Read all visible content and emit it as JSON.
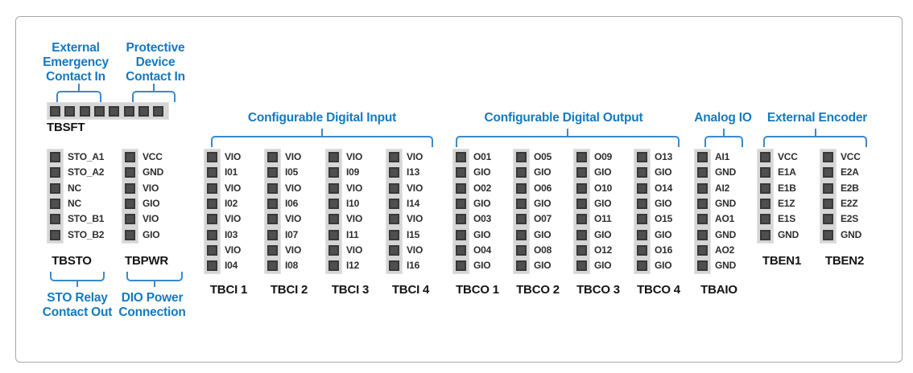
{
  "colors": {
    "accent": "#1579c0",
    "bracket": "#3a89cc",
    "pin_fill": "#4f4f4f",
    "pin_edge": "#383838",
    "strip": "#d6d6d6",
    "label_ink": "#141414",
    "frame_border": "#a8a8a8"
  },
  "safety_group": {
    "strip_label": "TBSFT",
    "pin_count": 8,
    "annotations": [
      {
        "id": "external-emergency-contact-in",
        "lines": [
          "External",
          "Emergency",
          "Contact In"
        ]
      },
      {
        "id": "protective-device-contact-in",
        "lines": [
          "Protective",
          "Device",
          "Contact In"
        ]
      }
    ]
  },
  "bottom_annotations": [
    {
      "id": "sto-relay-contact-out",
      "lines": [
        "STO Relay",
        "Contact Out"
      ]
    },
    {
      "id": "dio-power-connection",
      "lines": [
        "DIO Power",
        "Connection"
      ]
    }
  ],
  "sections": [
    {
      "title": "Configurable Digital Input",
      "blocks": [
        "TBCI 1",
        "TBCI 2",
        "TBCI 3",
        "TBCI 4"
      ]
    },
    {
      "title": "Configurable Digital Output",
      "blocks": [
        "TBCO 1",
        "TBCO 2",
        "TBCO 3",
        "TBCO 4"
      ]
    },
    {
      "title": "Analog IO",
      "blocks": [
        "TBAIO"
      ]
    },
    {
      "title": "External Encoder",
      "blocks": [
        "TBEN1",
        "TBEN2"
      ]
    }
  ],
  "terminal_blocks": [
    {
      "label": "TBSTO",
      "pins": [
        "STO_A1",
        "STO_A2",
        "NC",
        "NC",
        "STO_B1",
        "STO_B2"
      ]
    },
    {
      "label": "TBPWR",
      "pins": [
        "VCC",
        "GND",
        "VIO",
        "GIO",
        "VIO",
        "GIO"
      ]
    },
    {
      "label": "TBCI 1",
      "pins": [
        "VIO",
        "I01",
        "VIO",
        "I02",
        "VIO",
        "I03",
        "VIO",
        "I04"
      ]
    },
    {
      "label": "TBCI 2",
      "pins": [
        "VIO",
        "I05",
        "VIO",
        "I06",
        "VIO",
        "I07",
        "VIO",
        "I08"
      ]
    },
    {
      "label": "TBCI 3",
      "pins": [
        "VIO",
        "I09",
        "VIO",
        "I10",
        "VIO",
        "I11",
        "VIO",
        "I12"
      ]
    },
    {
      "label": "TBCI 4",
      "pins": [
        "VIO",
        "I13",
        "VIO",
        "I14",
        "VIO",
        "I15",
        "VIO",
        "I16"
      ]
    },
    {
      "label": "TBCO 1",
      "pins": [
        "O01",
        "GIO",
        "O02",
        "GIO",
        "O03",
        "GIO",
        "O04",
        "GIO"
      ]
    },
    {
      "label": "TBCO 2",
      "pins": [
        "O05",
        "GIO",
        "O06",
        "GIO",
        "O07",
        "GIO",
        "O08",
        "GIO"
      ]
    },
    {
      "label": "TBCO 3",
      "pins": [
        "O09",
        "GIO",
        "O10",
        "GIO",
        "O11",
        "GIO",
        "O12",
        "GIO"
      ]
    },
    {
      "label": "TBCO 4",
      "pins": [
        "O13",
        "GIO",
        "O14",
        "GIO",
        "O15",
        "GIO",
        "O16",
        "GIO"
      ]
    },
    {
      "label": "TBAIO",
      "pins": [
        "AI1",
        "GND",
        "AI2",
        "GND",
        "AO1",
        "GND",
        "AO2",
        "GND"
      ]
    },
    {
      "label": "TBEN1",
      "pins": [
        "VCC",
        "E1A",
        "E1B",
        "E1Z",
        "E1S",
        "GND"
      ]
    },
    {
      "label": "TBEN2",
      "pins": [
        "VCC",
        "E2A",
        "E2B",
        "E2Z",
        "E2S",
        "GND"
      ]
    }
  ]
}
